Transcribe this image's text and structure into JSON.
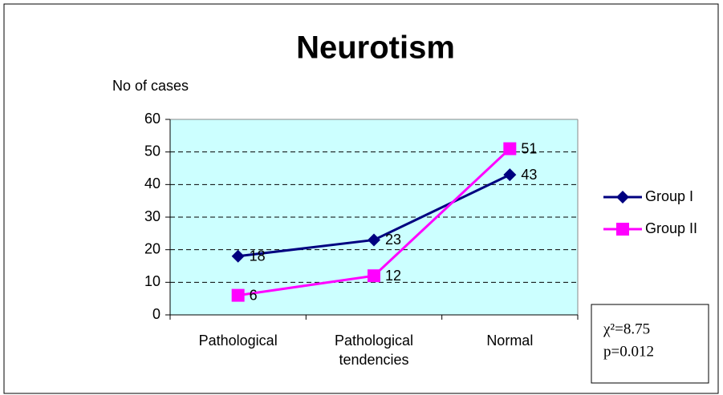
{
  "chart_data": {
    "type": "line",
    "title": "Neurotism",
    "y_label": "No of cases",
    "categories": [
      "Pathological",
      "Pathological tendencies",
      "Normal"
    ],
    "series": [
      {
        "name": "Group I",
        "color": "#000080",
        "marker": "diamond",
        "values": [
          18,
          23,
          43
        ]
      },
      {
        "name": "Group II",
        "color": "#ff00ff",
        "marker": "square",
        "values": [
          6,
          12,
          51
        ]
      }
    ],
    "ylim": [
      0,
      60
    ],
    "yticks": [
      0,
      10,
      20,
      30,
      40,
      50,
      60
    ],
    "grid": true,
    "legend": "right",
    "annotation": [
      "χ²=8.75",
      "p=0.012"
    ]
  }
}
